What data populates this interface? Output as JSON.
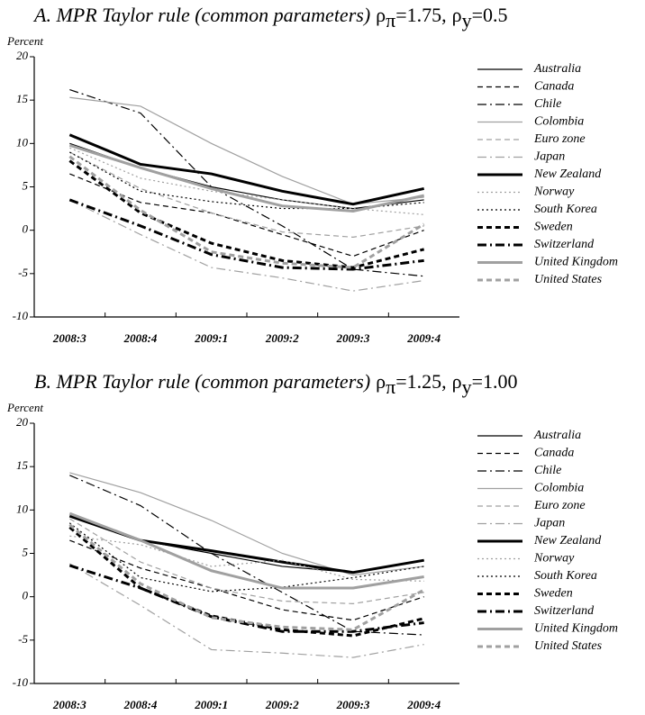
{
  "chart_data": [
    {
      "type": "line",
      "title": "A. MPR Taylor rule (common parameters)",
      "parameters": [
        {
          "symbol": "ρ",
          "subscript": "π",
          "value": "=1.75,"
        },
        {
          "symbol": "ρ",
          "subscript": "y",
          "value": "=0.5"
        }
      ],
      "y_label": "Percent",
      "categories": [
        "2008:3",
        "2008:4",
        "2009:1",
        "2009:2",
        "2009:3",
        "2009:4"
      ],
      "ylim": [
        -10,
        20
      ],
      "yticks": [
        -10,
        -5,
        0,
        5,
        10,
        15,
        20
      ],
      "series": [
        {
          "name": "Australia",
          "color": "#000000",
          "style": "solid",
          "weight": "thin",
          "values": [
            10,
            7.2,
            5,
            3.5,
            2.5,
            3.5
          ]
        },
        {
          "name": "Canada",
          "color": "#000000",
          "style": "dashed",
          "weight": "thin",
          "values": [
            6.5,
            3.2,
            2,
            -0.5,
            -3,
            0
          ]
        },
        {
          "name": "Chile",
          "color": "#000000",
          "style": "dashdot",
          "weight": "thin",
          "values": [
            16.2,
            13.5,
            5,
            0.5,
            -4.5,
            -5.3
          ]
        },
        {
          "name": "Colombia",
          "color": "#a0a0a0",
          "style": "solid",
          "weight": "thin",
          "values": [
            15.3,
            14.3,
            10,
            6.2,
            3,
            3.8
          ]
        },
        {
          "name": "Euro zone",
          "color": "#a0a0a0",
          "style": "dashed",
          "weight": "thin",
          "values": [
            9,
            4.8,
            2,
            -0.2,
            -0.8,
            0.5
          ]
        },
        {
          "name": "Japan",
          "color": "#a0a0a0",
          "style": "dashdot",
          "weight": "thin",
          "values": [
            3.5,
            -0.5,
            -4.3,
            -5.5,
            -7,
            -5.8
          ]
        },
        {
          "name": "New Zealand",
          "color": "#000000",
          "style": "solid",
          "weight": "thick",
          "values": [
            11,
            7.6,
            6.5,
            4.5,
            3,
            4.8
          ]
        },
        {
          "name": "Norway",
          "color": "#a0a0a0",
          "style": "dotted",
          "weight": "thin",
          "values": [
            9.5,
            6,
            4.5,
            3.5,
            2.5,
            1.8
          ]
        },
        {
          "name": "South Korea",
          "color": "#000000",
          "style": "dotted",
          "weight": "thin",
          "values": [
            9,
            4.5,
            3.3,
            2.5,
            2.5,
            3.2
          ]
        },
        {
          "name": "Sweden",
          "color": "#000000",
          "style": "dashed",
          "weight": "thick",
          "values": [
            8,
            2,
            -1.5,
            -3.5,
            -4.3,
            -2.2
          ]
        },
        {
          "name": "Switzerland",
          "color": "#000000",
          "style": "dashdot",
          "weight": "thick",
          "values": [
            3.5,
            0.5,
            -2.8,
            -4.3,
            -4.5,
            -3.5
          ]
        },
        {
          "name": "United Kingdom",
          "color": "#a0a0a0",
          "style": "solid",
          "weight": "thick",
          "values": [
            9.8,
            7.2,
            4.8,
            2.8,
            2.2,
            4
          ]
        },
        {
          "name": "United States",
          "color": "#a0a0a0",
          "style": "dashed",
          "weight": "thick",
          "values": [
            8.5,
            2.3,
            -2.5,
            -3.8,
            -4.3,
            0.7
          ]
        }
      ]
    },
    {
      "type": "line",
      "title": "B. MPR Taylor rule (common parameters)",
      "parameters": [
        {
          "symbol": "ρ",
          "subscript": "π",
          "value": "=1.25,"
        },
        {
          "symbol": "ρ",
          "subscript": "y",
          "value": "=1.00"
        }
      ],
      "y_label": "Percent",
      "categories": [
        "2008:3",
        "2008:4",
        "2009:1",
        "2009:2",
        "2009:3",
        "2009:4"
      ],
      "ylim": [
        -10,
        20
      ],
      "yticks": [
        -10,
        -5,
        0,
        5,
        10,
        15,
        20
      ],
      "series": [
        {
          "name": "Australia",
          "color": "#000000",
          "style": "solid",
          "weight": "thin",
          "values": [
            9.3,
            6.5,
            5,
            3.5,
            2.8,
            4.2
          ]
        },
        {
          "name": "Canada",
          "color": "#000000",
          "style": "dashed",
          "weight": "thin",
          "values": [
            6.5,
            3.3,
            1,
            -1.5,
            -2.7,
            0
          ]
        },
        {
          "name": "Chile",
          "color": "#000000",
          "style": "dashdot",
          "weight": "thin",
          "values": [
            14,
            10.5,
            5,
            0.5,
            -4,
            -4.4
          ]
        },
        {
          "name": "Colombia",
          "color": "#a0a0a0",
          "style": "solid",
          "weight": "thin",
          "values": [
            14.3,
            12,
            8.8,
            5,
            2.5,
            3.5
          ]
        },
        {
          "name": "Euro zone",
          "color": "#a0a0a0",
          "style": "dashed",
          "weight": "thin",
          "values": [
            9,
            4,
            1,
            -0.5,
            -0.8,
            0.5
          ]
        },
        {
          "name": "Japan",
          "color": "#a0a0a0",
          "style": "dashdot",
          "weight": "thin",
          "values": [
            3.8,
            -1,
            -6.1,
            -6.5,
            -7,
            -5.5
          ]
        },
        {
          "name": "New Zealand",
          "color": "#000000",
          "style": "solid",
          "weight": "thick",
          "values": [
            9.3,
            6.5,
            5.3,
            4,
            2.8,
            4.2
          ]
        },
        {
          "name": "Norway",
          "color": "#a0a0a0",
          "style": "dotted",
          "weight": "thin",
          "values": [
            7,
            6,
            3.5,
            4.2,
            2,
            1.8
          ]
        },
        {
          "name": "South Korea",
          "color": "#000000",
          "style": "dotted",
          "weight": "thin",
          "values": [
            8.5,
            2.2,
            0.6,
            1.1,
            2.2,
            3.5
          ]
        },
        {
          "name": "Sweden",
          "color": "#000000",
          "style": "dashed",
          "weight": "thick",
          "values": [
            8,
            1,
            -2.2,
            -3.8,
            -4.5,
            -2.5
          ]
        },
        {
          "name": "Switzerland",
          "color": "#000000",
          "style": "dashdot",
          "weight": "thick",
          "values": [
            3.6,
            1,
            -2.3,
            -4,
            -4,
            -3
          ]
        },
        {
          "name": "United Kingdom",
          "color": "#a0a0a0",
          "style": "solid",
          "weight": "thick",
          "values": [
            9.6,
            6.5,
            3,
            1,
            1,
            2.3
          ]
        },
        {
          "name": "United States",
          "color": "#a0a0a0",
          "style": "dashed",
          "weight": "thick",
          "values": [
            8.3,
            1.5,
            -2.4,
            -3.5,
            -3.8,
            0.8
          ]
        }
      ]
    }
  ]
}
